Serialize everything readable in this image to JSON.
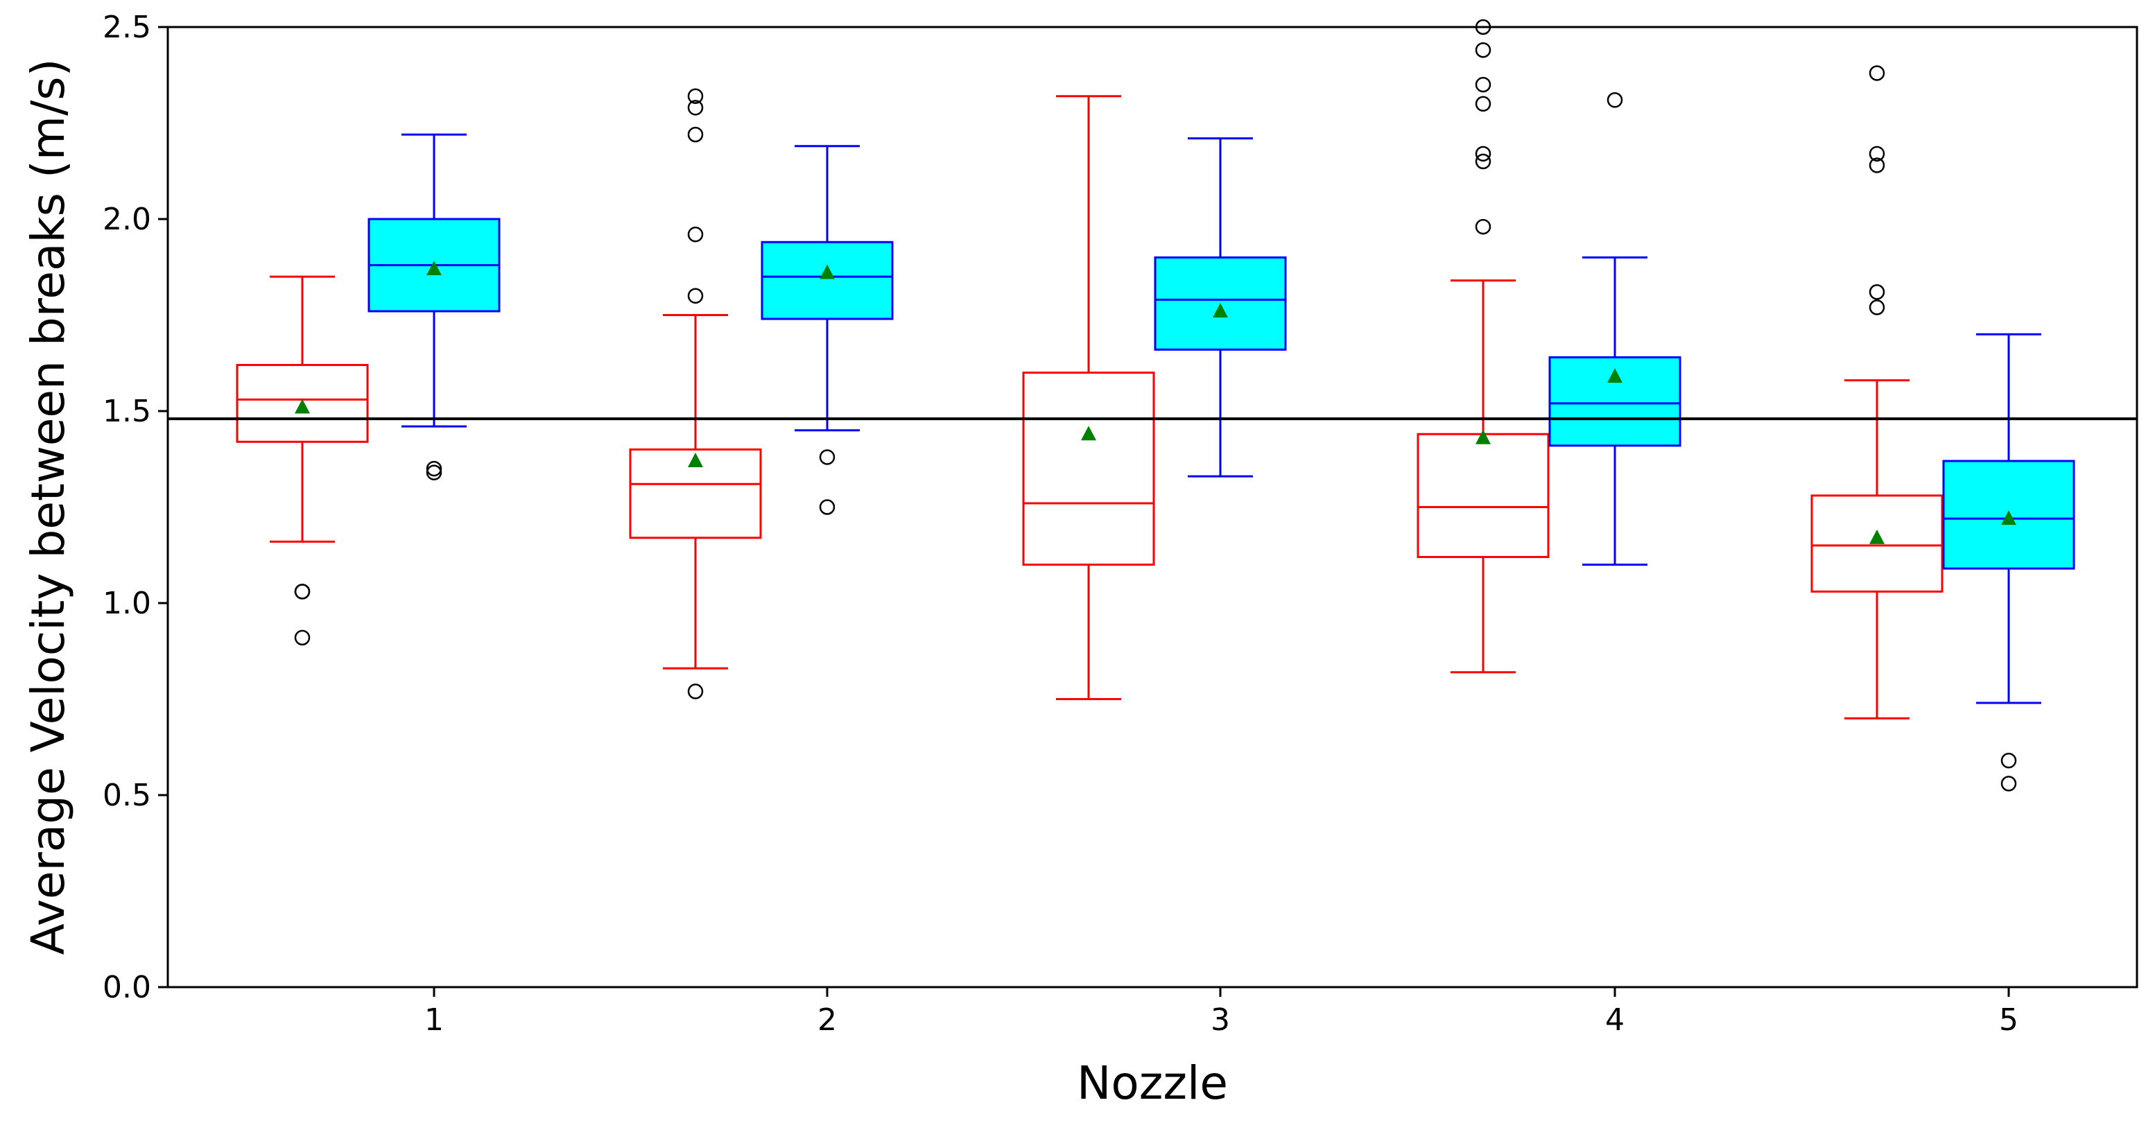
{
  "chart_data": {
    "type": "boxplot",
    "title": "",
    "xlabel": "Nozzle",
    "ylabel": "Average Velocity between breaks (m/s)",
    "ylim": [
      0.0,
      2.5
    ],
    "yticks": [
      0.0,
      0.5,
      1.0,
      1.5,
      2.0,
      2.5
    ],
    "ytick_labels": [
      "0.0",
      "0.5",
      "1.0",
      "1.5",
      "2.0",
      "2.5"
    ],
    "categories": [
      "1",
      "2",
      "3",
      "4",
      "5"
    ],
    "reference_line": 1.48,
    "colors": {
      "series_a_line": "#ff0000",
      "series_a_fill": "#ffffff",
      "series_b_line": "#0000ff",
      "series_b_fill": "#00ffff",
      "mean_marker": "#008000",
      "reference_line": "#000000",
      "flier": "#000000"
    },
    "series": [
      {
        "name": "red",
        "boxes": [
          {
            "category": "1",
            "whisker_low": 1.16,
            "q1": 1.42,
            "median": 1.53,
            "q3": 1.62,
            "whisker_high": 1.85,
            "mean": 1.51,
            "fliers": [
              1.03,
              1.03,
              0.91
            ]
          },
          {
            "category": "2",
            "whisker_low": 0.83,
            "q1": 1.17,
            "median": 1.31,
            "q3": 1.4,
            "whisker_high": 1.75,
            "mean": 1.37,
            "fliers": [
              2.32,
              2.29,
              2.22,
              1.96,
              1.8,
              0.77
            ]
          },
          {
            "category": "3",
            "whisker_low": 0.75,
            "q1": 1.1,
            "median": 1.26,
            "q3": 1.6,
            "whisker_high": 2.32,
            "mean": 1.44,
            "fliers": []
          },
          {
            "category": "4",
            "whisker_low": 0.82,
            "q1": 1.12,
            "median": 1.25,
            "q3": 1.44,
            "whisker_high": 1.84,
            "mean": 1.43,
            "fliers": [
              2.5,
              2.44,
              2.35,
              2.3,
              2.17,
              2.15,
              1.98
            ]
          },
          {
            "category": "5",
            "whisker_low": 0.7,
            "q1": 1.03,
            "median": 1.15,
            "q3": 1.28,
            "whisker_high": 1.58,
            "mean": 1.17,
            "fliers": [
              2.38,
              2.17,
              2.14,
              1.81,
              1.77
            ]
          }
        ]
      },
      {
        "name": "cyan",
        "boxes": [
          {
            "category": "1",
            "whisker_low": 1.46,
            "q1": 1.76,
            "median": 1.88,
            "q3": 2.0,
            "whisker_high": 2.22,
            "mean": 1.87,
            "fliers": [
              1.35,
              1.34
            ]
          },
          {
            "category": "2",
            "whisker_low": 1.45,
            "q1": 1.74,
            "median": 1.85,
            "q3": 1.94,
            "whisker_high": 2.19,
            "mean": 1.86,
            "fliers": [
              1.38,
              1.25
            ]
          },
          {
            "category": "3",
            "whisker_low": 1.33,
            "q1": 1.66,
            "median": 1.79,
            "q3": 1.9,
            "whisker_high": 2.21,
            "mean": 1.76,
            "fliers": []
          },
          {
            "category": "4",
            "whisker_low": 1.1,
            "q1": 1.41,
            "median": 1.52,
            "q3": 1.64,
            "whisker_high": 1.9,
            "mean": 1.59,
            "fliers": [
              2.31
            ]
          },
          {
            "category": "5",
            "whisker_low": 0.74,
            "q1": 1.09,
            "median": 1.22,
            "q3": 1.37,
            "whisker_high": 1.7,
            "mean": 1.22,
            "fliers": [
              0.59,
              0.53
            ]
          }
        ]
      }
    ]
  }
}
